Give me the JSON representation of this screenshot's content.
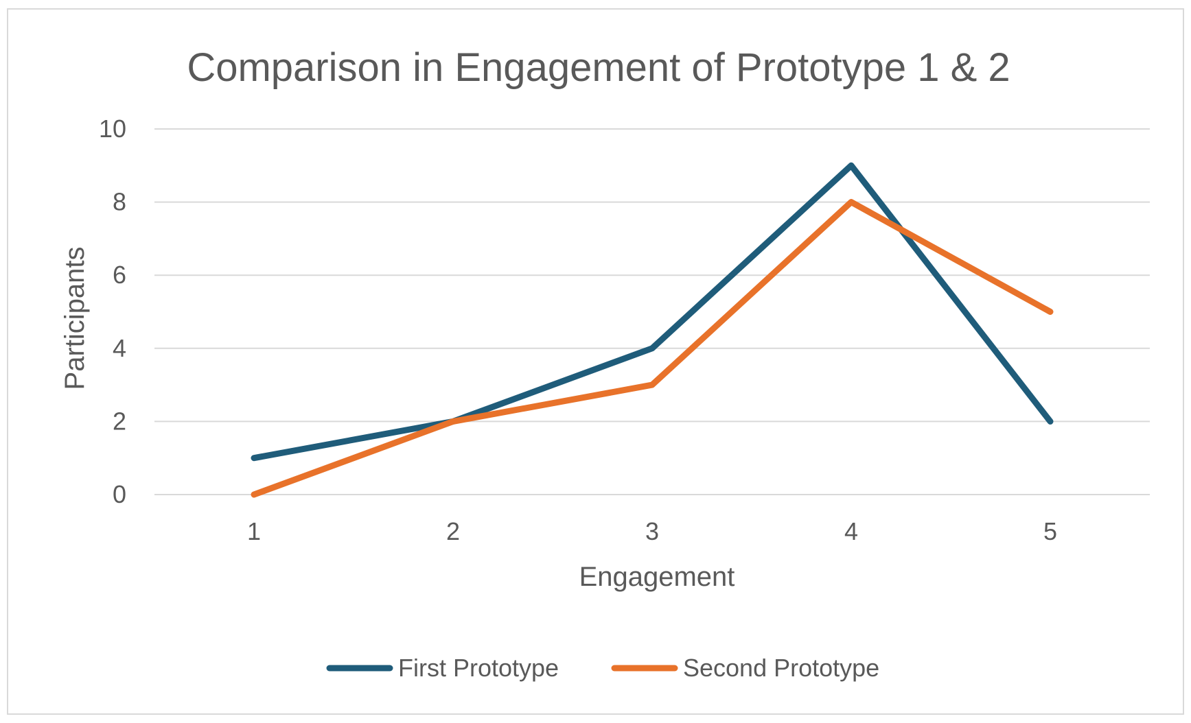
{
  "chart_data": {
    "type": "line",
    "title": "Comparison in Engagement of Prototype 1 & 2",
    "xlabel": "Engagement",
    "ylabel": "Participants",
    "categories": [
      "1",
      "2",
      "3",
      "4",
      "5"
    ],
    "ylim": [
      0,
      10
    ],
    "yticks": [
      "0",
      "2",
      "4",
      "6",
      "8",
      "10"
    ],
    "grid": true,
    "legend_position": "bottom",
    "series": [
      {
        "name": "First Prototype",
        "values": [
          1,
          2,
          4,
          9,
          2
        ],
        "color": "#1f5c7a"
      },
      {
        "name": "Second Prototype",
        "values": [
          0,
          2,
          3,
          8,
          5
        ],
        "color": "#e8722a"
      }
    ]
  }
}
